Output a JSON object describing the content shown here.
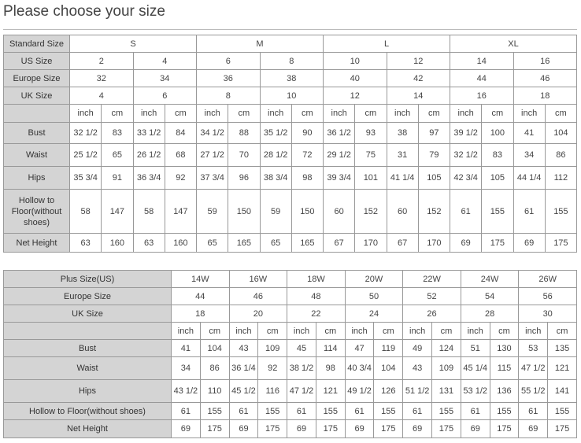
{
  "title": "Please choose your size",
  "table1": {
    "header_rows": [
      {
        "label": "Standard Size",
        "cells": [
          "S",
          "M",
          "L",
          "XL"
        ],
        "span": 4
      },
      {
        "label": "US Size",
        "cells": [
          "2",
          "4",
          "6",
          "8",
          "10",
          "12",
          "14",
          "16"
        ],
        "span": 2
      },
      {
        "label": "Europe Size",
        "cells": [
          "32",
          "34",
          "36",
          "38",
          "40",
          "42",
          "44",
          "46"
        ],
        "span": 2
      },
      {
        "label": "UK Size",
        "cells": [
          "4",
          "6",
          "8",
          "10",
          "12",
          "14",
          "16",
          "18"
        ],
        "span": 2
      }
    ],
    "units": [
      "inch",
      "cm"
    ],
    "rows": [
      {
        "label": "Bust",
        "cells": [
          "32 1/2",
          "83",
          "33 1/2",
          "84",
          "34 1/2",
          "88",
          "35 1/2",
          "90",
          "36 1/2",
          "93",
          "38",
          "97",
          "39 1/2",
          "100",
          "41",
          "104"
        ]
      },
      {
        "label": "Waist",
        "cells": [
          "25 1/2",
          "65",
          "26 1/2",
          "68",
          "27 1/2",
          "70",
          "28 1/2",
          "72",
          "29 1/2",
          "75",
          "31",
          "79",
          "32 1/2",
          "83",
          "34",
          "86"
        ]
      },
      {
        "label": "Hips",
        "cells": [
          "35 3/4",
          "91",
          "36 3/4",
          "92",
          "37 3/4",
          "96",
          "38 3/4",
          "98",
          "39 3/4",
          "101",
          "41 1/4",
          "105",
          "42 3/4",
          "105",
          "44 1/4",
          "112"
        ]
      },
      {
        "label": "Hollow to Floor(without shoes)",
        "cells": [
          "58",
          "147",
          "58",
          "147",
          "59",
          "150",
          "59",
          "150",
          "60",
          "152",
          "60",
          "152",
          "61",
          "155",
          "61",
          "155"
        ]
      },
      {
        "label": "Net Height",
        "cells": [
          "63",
          "160",
          "63",
          "160",
          "65",
          "165",
          "65",
          "165",
          "67",
          "170",
          "67",
          "170",
          "69",
          "175",
          "69",
          "175"
        ]
      }
    ]
  },
  "table2": {
    "header_rows": [
      {
        "label": "Plus Size(US)",
        "cells": [
          "14W",
          "16W",
          "18W",
          "20W",
          "22W",
          "24W",
          "26W"
        ],
        "span": 2
      },
      {
        "label": "Europe Size",
        "cells": [
          "44",
          "46",
          "48",
          "50",
          "52",
          "54",
          "56"
        ],
        "span": 2
      },
      {
        "label": "UK Size",
        "cells": [
          "18",
          "20",
          "22",
          "24",
          "26",
          "28",
          "30"
        ],
        "span": 2
      }
    ],
    "units": [
      "inch",
      "cm"
    ],
    "rows": [
      {
        "label": "Bust",
        "cells": [
          "41",
          "104",
          "43",
          "109",
          "45",
          "114",
          "47",
          "119",
          "49",
          "124",
          "51",
          "130",
          "53",
          "135"
        ]
      },
      {
        "label": "Waist",
        "cells": [
          "34",
          "86",
          "36 1/4",
          "92",
          "38 1/2",
          "98",
          "40 3/4",
          "104",
          "43",
          "109",
          "45 1/4",
          "115",
          "47 1/2",
          "121"
        ]
      },
      {
        "label": "Hips",
        "cells": [
          "43 1/2",
          "110",
          "45 1/2",
          "116",
          "47 1/2",
          "121",
          "49 1/2",
          "126",
          "51 1/2",
          "131",
          "53 1/2",
          "136",
          "55 1/2",
          "141"
        ]
      },
      {
        "label": "Hollow to Floor(without shoes)",
        "cells": [
          "61",
          "155",
          "61",
          "155",
          "61",
          "155",
          "61",
          "155",
          "61",
          "155",
          "61",
          "155",
          "61",
          "155"
        ]
      },
      {
        "label": "Net Height",
        "cells": [
          "69",
          "175",
          "69",
          "175",
          "69",
          "175",
          "69",
          "175",
          "69",
          "175",
          "69",
          "175",
          "69",
          "175"
        ]
      }
    ]
  }
}
